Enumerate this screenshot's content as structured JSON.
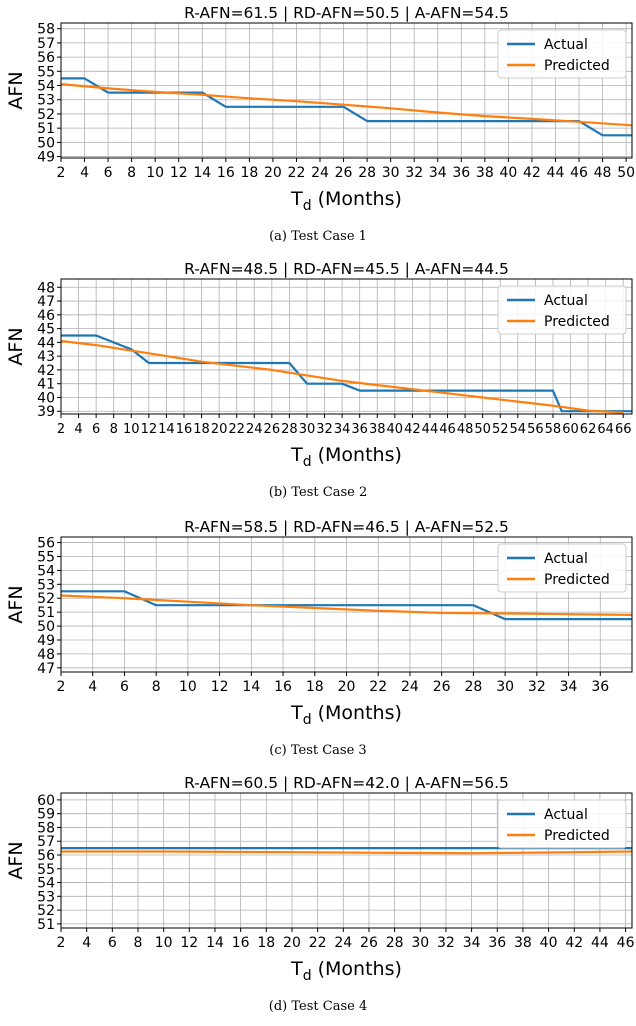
{
  "legend": {
    "actual": "Actual",
    "predicted": "Predicted"
  },
  "colors": {
    "actual": "#1f77b4",
    "predicted": "#ff7f0e",
    "grid": "#b0b0b0"
  },
  "chart_data": [
    {
      "type": "line",
      "title": "R-AFN=61.5  |  RD-AFN=50.5  |  A-AFN=54.5",
      "xlabel": "T_d (Months)",
      "ylabel": "AFN",
      "caption": "(a)  Test Case 1",
      "xlim": [
        2,
        50.5
      ],
      "ylim": [
        48.9,
        58.4
      ],
      "xticks": [
        2,
        4,
        6,
        8,
        10,
        12,
        14,
        16,
        18,
        20,
        22,
        24,
        26,
        28,
        30,
        32,
        34,
        36,
        38,
        40,
        42,
        44,
        46,
        48,
        50
      ],
      "yticks": [
        49,
        50,
        51,
        52,
        53,
        54,
        55,
        56,
        57,
        58
      ],
      "grid": true,
      "legend_position": "top-right",
      "series": [
        {
          "name": "Actual",
          "x": [
            2,
            4,
            6,
            14,
            16,
            26,
            28,
            46,
            48,
            50.5
          ],
          "y": [
            54.5,
            54.5,
            53.5,
            53.5,
            52.5,
            52.5,
            51.5,
            51.5,
            50.5,
            50.5
          ]
        },
        {
          "name": "Predicted",
          "x": [
            2,
            6,
            10,
            14,
            18,
            22,
            26,
            30,
            34,
            38,
            42,
            46,
            50.5
          ],
          "y": [
            54.1,
            53.8,
            53.55,
            53.35,
            53.1,
            52.9,
            52.65,
            52.4,
            52.1,
            51.85,
            51.65,
            51.45,
            51.2
          ]
        }
      ]
    },
    {
      "type": "line",
      "title": "R-AFN=48.5  |  RD-AFN=45.5  |  A-AFN=44.5",
      "xlabel": "T_d (Months)",
      "ylabel": "AFN",
      "caption": "(b)  Test Case 2",
      "xlim": [
        2,
        67
      ],
      "ylim": [
        38.8,
        48.6
      ],
      "xticks": [
        2,
        4,
        6,
        8,
        10,
        12,
        14,
        16,
        18,
        20,
        22,
        24,
        26,
        28,
        30,
        32,
        34,
        36,
        38,
        40,
        42,
        44,
        46,
        48,
        50,
        52,
        54,
        56,
        58,
        60,
        62,
        64,
        66
      ],
      "yticks": [
        39,
        40,
        41,
        42,
        43,
        44,
        45,
        46,
        47,
        48
      ],
      "grid": true,
      "legend_position": "top-right",
      "series": [
        {
          "name": "Actual",
          "x": [
            2,
            6,
            10,
            12,
            28,
            30,
            34,
            36,
            58,
            59,
            67
          ],
          "y": [
            44.5,
            44.5,
            43.5,
            42.5,
            42.5,
            41,
            41,
            40.5,
            40.5,
            39,
            39
          ]
        },
        {
          "name": "Predicted",
          "x": [
            2,
            6,
            10,
            14,
            18,
            22,
            26,
            30,
            34,
            38,
            42,
            46,
            50,
            54,
            58,
            62,
            66
          ],
          "y": [
            44.1,
            43.8,
            43.4,
            43.0,
            42.6,
            42.3,
            42.0,
            41.6,
            41.2,
            40.9,
            40.6,
            40.3,
            40.0,
            39.7,
            39.4,
            39.05,
            38.9
          ]
        }
      ]
    },
    {
      "type": "line",
      "title": "R-AFN=58.5  |  RD-AFN=46.5  |  A-AFN=52.5",
      "xlabel": "T_d (Months)",
      "ylabel": "AFN",
      "caption": "(c)  Test Case 3",
      "xlim": [
        2,
        38
      ],
      "ylim": [
        46.7,
        56.4
      ],
      "xticks": [
        2,
        4,
        6,
        8,
        10,
        12,
        14,
        16,
        18,
        20,
        22,
        24,
        26,
        28,
        30,
        32,
        34,
        36
      ],
      "yticks": [
        47,
        48,
        49,
        50,
        51,
        52,
        53,
        54,
        55,
        56
      ],
      "grid": true,
      "legend_position": "top-right",
      "series": [
        {
          "name": "Actual",
          "x": [
            2,
            6,
            8,
            28,
            30,
            38
          ],
          "y": [
            52.5,
            52.5,
            51.5,
            51.5,
            50.5,
            50.5
          ]
        },
        {
          "name": "Predicted",
          "x": [
            2,
            6,
            10,
            14,
            18,
            22,
            26,
            30,
            34,
            38
          ],
          "y": [
            52.2,
            52.0,
            51.75,
            51.5,
            51.3,
            51.1,
            50.95,
            50.9,
            50.85,
            50.8
          ]
        }
      ]
    },
    {
      "type": "line",
      "title": "R-AFN=60.5  |  RD-AFN=42.0  |  A-AFN=56.5",
      "xlabel": "T_d (Months)",
      "ylabel": "AFN",
      "caption": "(d)  Test Case 4",
      "xlim": [
        2,
        46.5
      ],
      "ylim": [
        50.7,
        60.5
      ],
      "xticks": [
        2,
        4,
        6,
        8,
        10,
        12,
        14,
        16,
        18,
        20,
        22,
        24,
        26,
        28,
        30,
        32,
        34,
        36,
        38,
        40,
        42,
        44,
        46
      ],
      "yticks": [
        51,
        52,
        53,
        54,
        55,
        56,
        57,
        58,
        59,
        60
      ],
      "grid": true,
      "legend_position": "top-right",
      "series": [
        {
          "name": "Actual",
          "x": [
            2,
            46.5
          ],
          "y": [
            56.5,
            56.5
          ]
        },
        {
          "name": "Predicted",
          "x": [
            2,
            10,
            20,
            28,
            34,
            40,
            46.5
          ],
          "y": [
            56.25,
            56.25,
            56.2,
            56.15,
            56.13,
            56.18,
            56.25
          ]
        }
      ]
    }
  ]
}
